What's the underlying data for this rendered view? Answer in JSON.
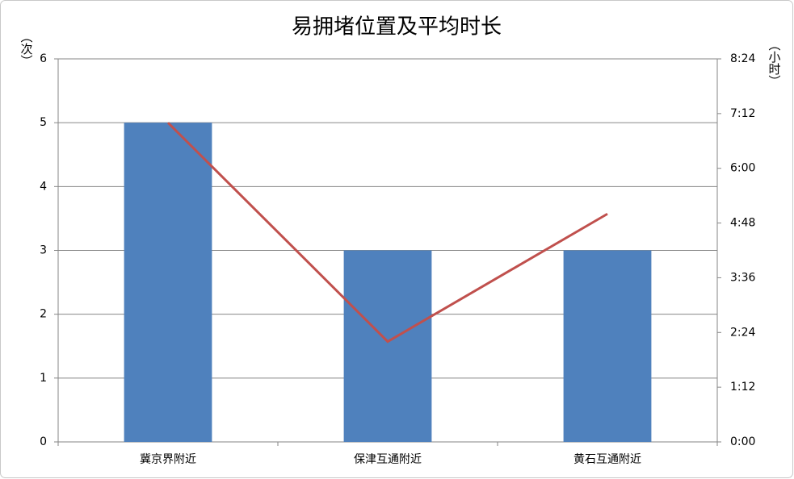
{
  "chart_data": {
    "type": "bar",
    "title": "易拥堵位置及平均时长",
    "y_label": "（次）",
    "y2_label": "（小时）",
    "categories": [
      "冀京界附近",
      "保津互通附近",
      "黄石互通附近"
    ],
    "series": [
      {
        "type": "bar",
        "color": "#4f81bd",
        "values": [
          5,
          3,
          3
        ]
      },
      {
        "type": "line",
        "axis": "y2",
        "color": "#c0504d",
        "values": [
          7.0,
          2.2,
          5.0
        ]
      }
    ],
    "ylim": [
      0,
      6
    ],
    "yticks": [
      0,
      1,
      2,
      3,
      4,
      5,
      6
    ],
    "y2lim": [
      0,
      8.4
    ],
    "y2ticks": [
      {
        "value": 0,
        "label": "0:00"
      },
      {
        "value": 1.2,
        "label": "1:12"
      },
      {
        "value": 2.4,
        "label": "2:24"
      },
      {
        "value": 3.6,
        "label": "3:36"
      },
      {
        "value": 4.8,
        "label": "4:48"
      },
      {
        "value": 6.0,
        "label": "6:00"
      },
      {
        "value": 7.2,
        "label": "7:12"
      },
      {
        "value": 8.4,
        "label": "8:24"
      }
    ],
    "grid": true
  }
}
